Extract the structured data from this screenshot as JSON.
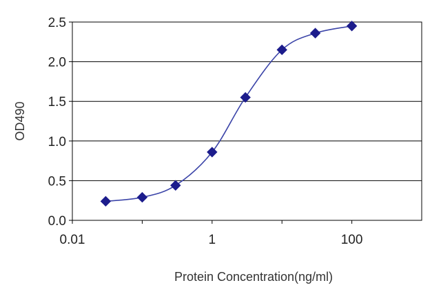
{
  "chart_data": {
    "type": "line",
    "title": "",
    "xlabel": "Protein Concentration(ng/ml)",
    "ylabel": "OD490",
    "x_scale": "log",
    "xlim": [
      0.01,
      1000
    ],
    "ylim": [
      0,
      2.5
    ],
    "x_ticks": [
      {
        "value": 0.01,
        "label": "0.01"
      },
      {
        "value": 1,
        "label": "1"
      },
      {
        "value": 100,
        "label": "100"
      }
    ],
    "y_ticks": [
      {
        "value": 0,
        "label": "0.0"
      },
      {
        "value": 0.5,
        "label": "0.5"
      },
      {
        "value": 1.0,
        "label": "1.0"
      },
      {
        "value": 1.5,
        "label": "1.5"
      },
      {
        "value": 2.0,
        "label": "2.0"
      },
      {
        "value": 2.5,
        "label": "2.5"
      }
    ],
    "grid": "horizontal",
    "legend": "none",
    "series": [
      {
        "marker": "diamond",
        "color": "#1c1c8c",
        "line_color": "#3b44a8",
        "points": [
          {
            "x": 0.03,
            "y": 0.24
          },
          {
            "x": 0.1,
            "y": 0.29
          },
          {
            "x": 0.3,
            "y": 0.44
          },
          {
            "x": 1.0,
            "y": 0.86
          },
          {
            "x": 3.0,
            "y": 1.55
          },
          {
            "x": 10,
            "y": 2.15
          },
          {
            "x": 30,
            "y": 2.36
          },
          {
            "x": 100,
            "y": 2.45
          }
        ]
      }
    ]
  }
}
